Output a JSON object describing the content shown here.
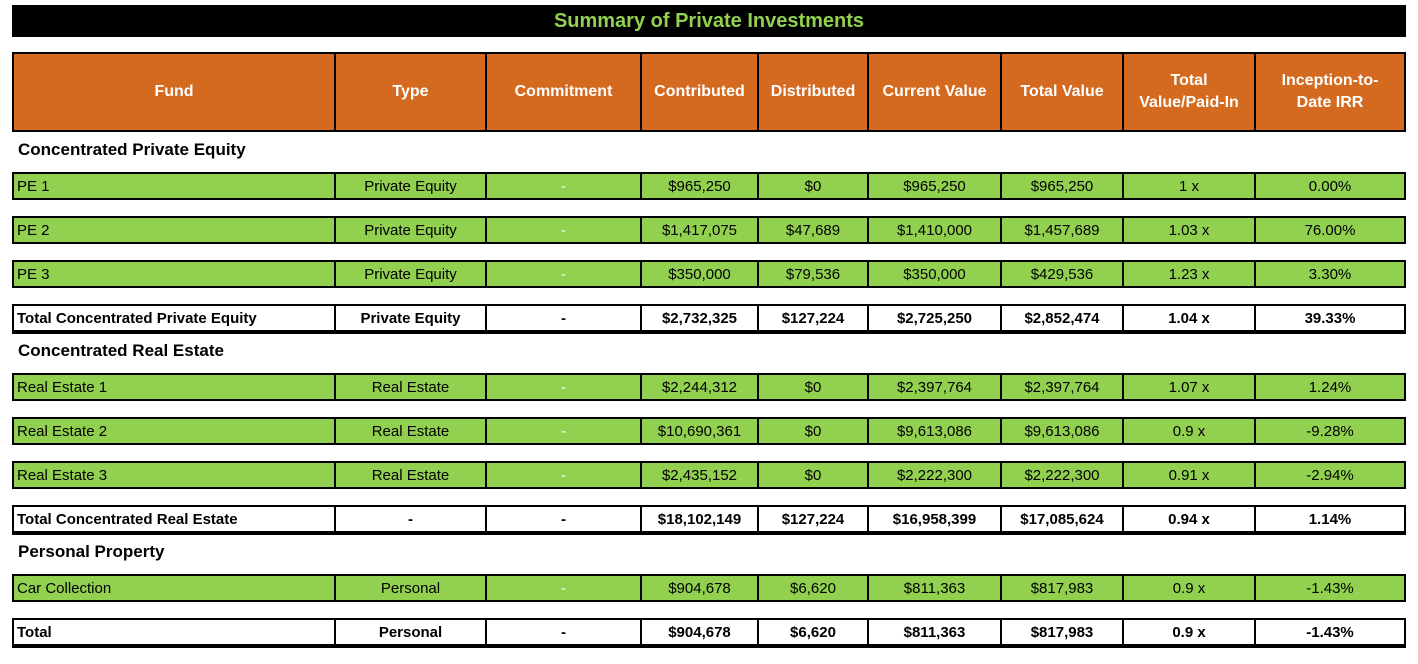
{
  "title": "Summary of Private Investments",
  "headers": [
    "Fund",
    "Type",
    "Commitment",
    "Contributed",
    "Distributed",
    "Current Value",
    "Total Value",
    "Total\nValue/Paid-In",
    "Inception-to-\nDate IRR"
  ],
  "sections": [
    {
      "name": "Concentrated Private Equity",
      "rows": [
        [
          "PE 1",
          "Private Equity",
          "-",
          "$965,250",
          "$0",
          "$965,250",
          "$965,250",
          "1 x",
          "0.00%"
        ],
        [
          "PE 2",
          "Private Equity",
          "-",
          "$1,417,075",
          "$47,689",
          "$1,410,000",
          "$1,457,689",
          "1.03 x",
          "76.00%"
        ],
        [
          "PE 3",
          "Private Equity",
          "-",
          "$350,000",
          "$79,536",
          "$350,000",
          "$429,536",
          "1.23 x",
          "3.30%"
        ]
      ],
      "total": [
        "Total Concentrated Private Equity",
        "Private Equity",
        "-",
        "$2,732,325",
        "$127,224",
        "$2,725,250",
        "$2,852,474",
        "1.04 x",
        "39.33%"
      ]
    },
    {
      "name": "Concentrated Real Estate",
      "rows": [
        [
          "Real Estate 1",
          "Real Estate",
          "-",
          "$2,244,312",
          "$0",
          "$2,397,764",
          "$2,397,764",
          "1.07 x",
          "1.24%"
        ],
        [
          "Real Estate 2",
          "Real Estate",
          "-",
          "$10,690,361",
          "$0",
          "$9,613,086",
          "$9,613,086",
          "0.9 x",
          "-9.28%"
        ],
        [
          "Real Estate 3",
          "Real Estate",
          "-",
          "$2,435,152",
          "$0",
          "$2,222,300",
          "$2,222,300",
          "0.91 x",
          "-2.94%"
        ]
      ],
      "total": [
        "Total Concentrated Real Estate",
        "-",
        "-",
        "$18,102,149",
        "$127,224",
        "$16,958,399",
        "$17,085,624",
        "0.94 x",
        "1.14%"
      ]
    },
    {
      "name": "Personal Property",
      "rows": [
        [
          "Car Collection",
          "Personal",
          "-",
          "$904,678",
          "$6,620",
          "$811,363",
          "$817,983",
          "0.9 x",
          "-1.43%"
        ]
      ],
      "total": [
        "Total",
        "Personal",
        "-",
        "$904,678",
        "$6,620",
        "$811,363",
        "$817,983",
        "0.9 x",
        "-1.43%"
      ]
    }
  ],
  "colors": {
    "title_bg": "#000000",
    "title_text": "#92d050",
    "header_bg": "#d46a1f",
    "row_bg": "#92d050"
  }
}
